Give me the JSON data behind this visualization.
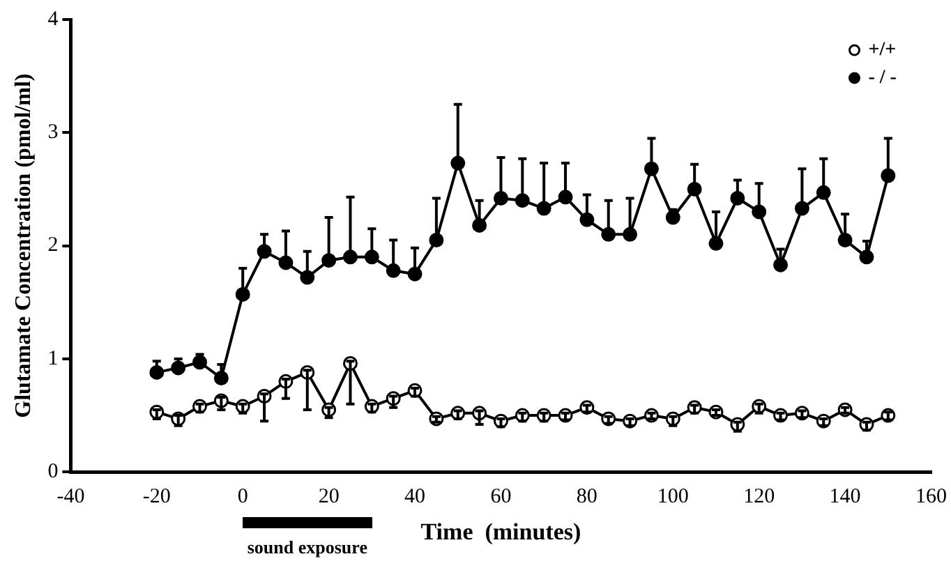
{
  "chart_data": {
    "type": "line",
    "xlabel": "Time  (minutes)",
    "ylabel": "Glutamate Concentration (pmol/ml)",
    "x": [
      -20,
      -15,
      -10,
      -5,
      0,
      5,
      10,
      15,
      20,
      25,
      30,
      35,
      40,
      45,
      50,
      55,
      60,
      65,
      70,
      75,
      80,
      85,
      90,
      95,
      100,
      105,
      110,
      115,
      120,
      125,
      130,
      135,
      140,
      145,
      150
    ],
    "series": [
      {
        "name": "+/+",
        "color": "#000000",
        "values": [
          0.53,
          0.47,
          0.58,
          0.63,
          0.58,
          0.67,
          0.8,
          0.88,
          0.55,
          0.96,
          0.58,
          0.65,
          0.72,
          0.47,
          0.52,
          0.52,
          0.45,
          0.5,
          0.5,
          0.5,
          0.57,
          0.47,
          0.45,
          0.5,
          0.47,
          0.57,
          0.53,
          0.42,
          0.58,
          0.5,
          0.52,
          0.45,
          0.55,
          0.42,
          0.5
        ],
        "errors": [
          [
            0.47,
            0.55
          ],
          [
            0.41,
            0.5
          ],
          [
            0.53,
            0.6
          ],
          [
            0.55,
            0.66
          ],
          [
            0.52,
            0.6
          ],
          [
            0.45,
            0.69
          ],
          [
            0.65,
            0.82
          ],
          [
            0.55,
            0.9
          ],
          [
            0.48,
            0.57
          ],
          [
            0.6,
            0.98
          ],
          [
            0.53,
            0.6
          ],
          [
            0.57,
            0.67
          ],
          [
            0.67,
            0.74
          ],
          [
            0.44,
            0.49
          ],
          [
            0.47,
            0.54
          ],
          [
            0.42,
            0.54
          ],
          [
            0.4,
            0.47
          ],
          [
            0.45,
            0.52
          ],
          [
            0.45,
            0.52
          ],
          [
            0.46,
            0.52
          ],
          [
            0.53,
            0.59
          ],
          [
            0.43,
            0.49
          ],
          [
            0.41,
            0.47
          ],
          [
            0.47,
            0.52
          ],
          [
            0.41,
            0.49
          ],
          [
            0.52,
            0.59
          ],
          [
            0.5,
            0.55
          ],
          [
            0.36,
            0.44
          ],
          [
            0.52,
            0.6
          ],
          [
            0.46,
            0.52
          ],
          [
            0.48,
            0.54
          ],
          [
            0.41,
            0.47
          ],
          [
            0.52,
            0.57
          ],
          [
            0.37,
            0.44
          ],
          [
            0.46,
            0.53
          ]
        ]
      },
      {
        "name": "- / -",
        "color": "#000000",
        "values": [
          0.88,
          0.92,
          0.97,
          0.83,
          1.57,
          1.95,
          1.85,
          1.72,
          1.87,
          1.9,
          1.9,
          1.78,
          1.75,
          2.05,
          2.73,
          2.18,
          2.42,
          2.4,
          2.33,
          2.43,
          2.23,
          2.1,
          2.1,
          2.68,
          2.25,
          2.5,
          2.02,
          2.42,
          2.3,
          1.83,
          2.33,
          2.47,
          2.05,
          1.9,
          2.62
        ],
        "errors": [
          [
            0.88,
            0.98
          ],
          [
            0.92,
            1.0
          ],
          [
            0.97,
            1.04
          ],
          [
            0.83,
            0.95
          ],
          [
            1.57,
            1.8
          ],
          [
            1.95,
            2.1
          ],
          [
            1.85,
            2.13
          ],
          [
            1.72,
            1.95
          ],
          [
            1.87,
            2.25
          ],
          [
            1.9,
            2.43
          ],
          [
            1.9,
            2.15
          ],
          [
            1.78,
            2.05
          ],
          [
            1.75,
            1.98
          ],
          [
            2.05,
            2.42
          ],
          [
            2.73,
            3.25
          ],
          [
            2.18,
            2.4
          ],
          [
            2.42,
            2.78
          ],
          [
            2.4,
            2.77
          ],
          [
            2.33,
            2.73
          ],
          [
            2.43,
            2.73
          ],
          [
            2.23,
            2.45
          ],
          [
            2.1,
            2.4
          ],
          [
            2.1,
            2.42
          ],
          [
            2.68,
            2.95
          ],
          [
            2.25,
            2.32
          ],
          [
            2.5,
            2.72
          ],
          [
            2.02,
            2.3
          ],
          [
            2.42,
            2.58
          ],
          [
            2.3,
            2.55
          ],
          [
            1.83,
            1.97
          ],
          [
            2.33,
            2.68
          ],
          [
            2.47,
            2.77
          ],
          [
            2.05,
            2.28
          ],
          [
            1.9,
            2.04
          ],
          [
            2.62,
            2.95
          ]
        ]
      }
    ],
    "xlim": [
      -40,
      160
    ],
    "xticks": [
      -40,
      -20,
      0,
      20,
      40,
      60,
      80,
      100,
      120,
      140,
      160
    ],
    "ylim": [
      0,
      4
    ],
    "yticks": [
      0,
      1,
      2,
      3,
      4
    ],
    "annotations": [
      "sound exposure"
    ],
    "marker": "circle",
    "line_style": "solid",
    "legend": "top right",
    "grid": false
  }
}
